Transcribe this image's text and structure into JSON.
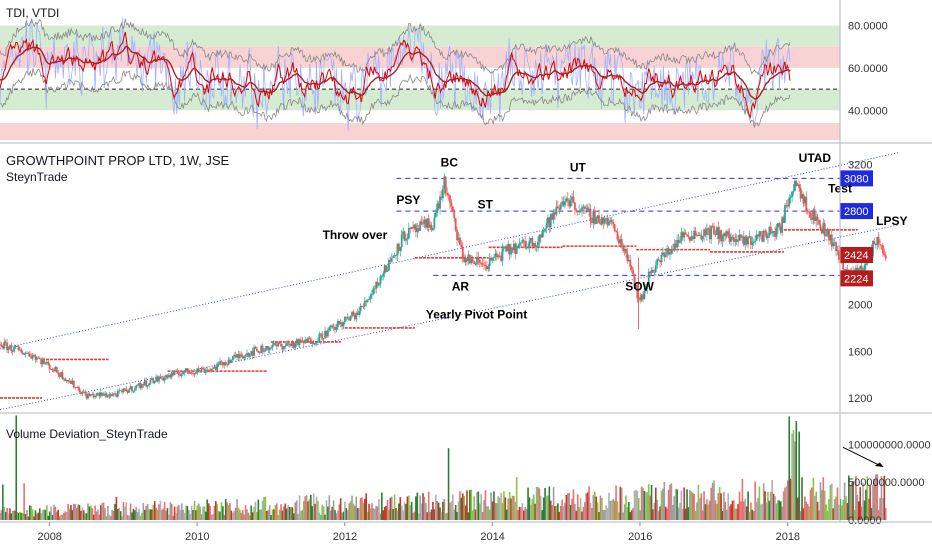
{
  "chart_data": [
    {
      "type": "line",
      "pane": "indicator",
      "title": "TDI, VTDI",
      "yticks": [
        "80.0000",
        "60.0000",
        "40.0000"
      ],
      "ytick_values": [
        80,
        60,
        40
      ],
      "ylim": [
        26,
        92
      ],
      "bands": [
        {
          "from": 70,
          "to": 80,
          "color": "#d6ecd2"
        },
        {
          "from": 60,
          "to": 70,
          "color": "#f9d3d3"
        },
        {
          "from": 40,
          "to": 50,
          "color": "#d6ecd2"
        },
        {
          "from": 26,
          "to": 34,
          "color": "#f9d3d3"
        }
      ],
      "midline": 50,
      "series_colors": {
        "fast": "#e00000",
        "slow": "#aa2222",
        "bands": "#888888",
        "volatility": "#9fb0ff"
      }
    },
    {
      "type": "candlestick",
      "pane": "price",
      "title": "GROWTHPOINT PROP LTD, 1W, JSE",
      "subtitle": "SteynTrade",
      "yticks": [
        "3200",
        "2800",
        "2400",
        "2000",
        "1600",
        "1200"
      ],
      "ytick_values": [
        3200,
        2800,
        2400,
        2000,
        1600,
        1200
      ],
      "ylim": [
        1080,
        3340
      ],
      "x_labels": [
        "2008",
        "2010",
        "2012",
        "2014",
        "2016",
        "2018"
      ],
      "x_label_years": [
        2008,
        2010,
        2012,
        2014,
        2016,
        2018
      ],
      "xlim": [
        2007.33,
        2019.97
      ],
      "path": [
        [
          2007.33,
          1660
        ],
        [
          2007.8,
          1560
        ],
        [
          2008.2,
          1380
        ],
        [
          2008.5,
          1220
        ],
        [
          2008.9,
          1230
        ],
        [
          2009.4,
          1350
        ],
        [
          2009.8,
          1420
        ],
        [
          2010.2,
          1450
        ],
        [
          2010.6,
          1570
        ],
        [
          2011.0,
          1640
        ],
        [
          2011.3,
          1660
        ],
        [
          2011.6,
          1700
        ],
        [
          2011.9,
          1820
        ],
        [
          2012.2,
          1940
        ],
        [
          2012.55,
          2300
        ],
        [
          2012.8,
          2590
        ],
        [
          2013.2,
          2700
        ],
        [
          2013.35,
          3040
        ],
        [
          2013.6,
          2400
        ],
        [
          2013.9,
          2340
        ],
        [
          2014.2,
          2460
        ],
        [
          2014.6,
          2550
        ],
        [
          2015.0,
          2920
        ],
        [
          2015.25,
          2780
        ],
        [
          2015.6,
          2700
        ],
        [
          2015.85,
          2400
        ],
        [
          2016.0,
          2000
        ],
        [
          2016.15,
          2300
        ],
        [
          2016.6,
          2600
        ],
        [
          2017.0,
          2620
        ],
        [
          2017.4,
          2530
        ],
        [
          2017.9,
          2650
        ],
        [
          2018.1,
          3080
        ],
        [
          2018.3,
          2800
        ],
        [
          2018.6,
          2550
        ],
        [
          2018.8,
          2260
        ],
        [
          2019.05,
          2320
        ],
        [
          2019.2,
          2560
        ],
        [
          2019.35,
          2420
        ]
      ],
      "pivot_lines": [
        {
          "x0": 2007.33,
          "x1": 2007.9,
          "y": 1200
        },
        {
          "x0": 2007.9,
          "x1": 2008.8,
          "y": 1530
        },
        {
          "x0": 2009.6,
          "x1": 2010.95,
          "y": 1430
        },
        {
          "x0": 2011.0,
          "x1": 2011.95,
          "y": 1680
        },
        {
          "x0": 2012.0,
          "x1": 2012.95,
          "y": 1800
        },
        {
          "x0": 2012.95,
          "x1": 2013.95,
          "y": 2400
        },
        {
          "x0": 2013.95,
          "x1": 2014.95,
          "y": 2490
        },
        {
          "x0": 2014.95,
          "x1": 2015.95,
          "y": 2500
        },
        {
          "x0": 2015.95,
          "x1": 2016.95,
          "y": 2470
        },
        {
          "x0": 2016.95,
          "x1": 2017.95,
          "y": 2450
        },
        {
          "x0": 2017.95,
          "x1": 2018.95,
          "y": 2640
        }
      ],
      "h_levels": [
        {
          "value": 3080,
          "x0": 2012.7,
          "color": "#2e2ee6"
        },
        {
          "value": 2800,
          "x0": 2012.7,
          "color": "#2e2ee6"
        },
        {
          "value": 2424,
          "x0": 2019.1,
          "color": "#b71c1c"
        },
        {
          "value": 2224,
          "x0": 2018.8,
          "color": "#b71c1c"
        },
        {
          "value": 2250,
          "x0": 2013.2,
          "color": "#2e2ee6"
        }
      ],
      "channel_lines": [
        {
          "x0": 2007.33,
          "y0": 1620,
          "x1": 2019.5,
          "y1": 3300
        },
        {
          "x0": 2007.33,
          "y0": 1100,
          "x1": 2019.5,
          "y1": 2680
        }
      ],
      "price_badges": [
        {
          "label": "3080",
          "value": 3080,
          "color": "#1e2be0"
        },
        {
          "label": "2800",
          "value": 2800,
          "color": "#1e2be0"
        },
        {
          "label": "2424",
          "value": 2424,
          "color": "#b71c1c"
        },
        {
          "label": "2224",
          "value": 2224,
          "color": "#b71c1c"
        }
      ],
      "annotations": [
        {
          "text": "BC",
          "x": 2013.3,
          "y": 3180
        },
        {
          "text": "UT",
          "x": 2015.05,
          "y": 3140
        },
        {
          "text": "UTAD",
          "x": 2018.15,
          "y": 3220
        },
        {
          "text": "PSY",
          "x": 2012.7,
          "y": 2860
        },
        {
          "text": "ST",
          "x": 2013.8,
          "y": 2820
        },
        {
          "text": "Test",
          "x": 2018.55,
          "y": 2960
        },
        {
          "text": "LPSY",
          "x": 2019.2,
          "y": 2680
        },
        {
          "text": "Throw over",
          "x": 2011.7,
          "y": 2560
        },
        {
          "text": "AR",
          "x": 2013.45,
          "y": 2120
        },
        {
          "text": "SOW",
          "x": 2015.8,
          "y": 2120
        },
        {
          "text": "Yearly Pivot Point",
          "x": 2013.1,
          "y": 1880
        }
      ],
      "up_color": "#26a69a",
      "down_color": "#ef5350"
    },
    {
      "type": "bar",
      "pane": "volume",
      "title": "Volume Deviation_SteynTrade",
      "yticks": [
        "100000000.0000",
        "50000000.0000",
        "0.0000"
      ],
      "ytick_values": [
        100000000,
        50000000,
        0
      ],
      "ylim": [
        0,
        140000000
      ],
      "color_palette": [
        "#9e9e9e",
        "#c0392b",
        "#8bc34a",
        "#2e7d32",
        "#e57373",
        "#b0b0b0"
      ]
    }
  ]
}
